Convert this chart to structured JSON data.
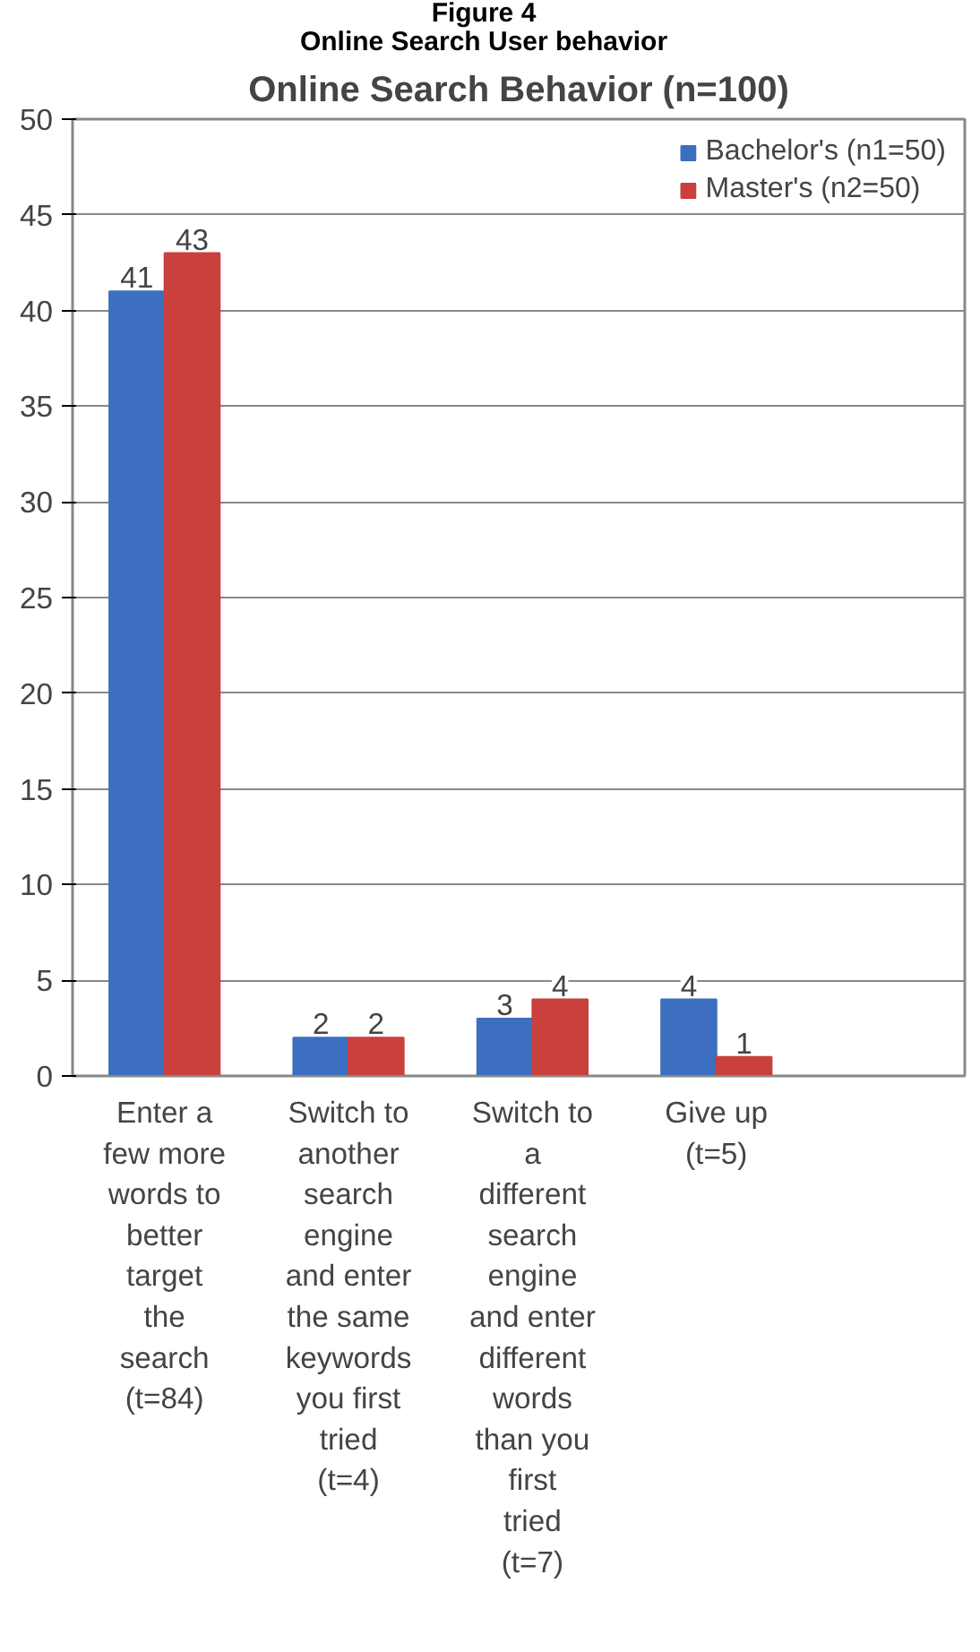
{
  "chart_data": {
    "type": "bar",
    "title": "Online Search Behavior (n=100)",
    "annotations": [
      "Figure 4",
      "Online Search User behavior"
    ],
    "categories": [
      "Enter a few more words to better target the search (t=84)",
      "Switch to another search engine and enter the same keywords you first tried (t=4)",
      "Switch to a different search engine and enter different words than you first tried (t=7)",
      "Give up (t=5)"
    ],
    "series": [
      {
        "name": "Bachelor's (n1=50)",
        "color": "#3c6fbf",
        "values": [
          41,
          2,
          3,
          4
        ]
      },
      {
        "name": "Master's (n2=50)",
        "color": "#c9403c",
        "values": [
          43,
          2,
          4,
          1
        ]
      }
    ],
    "ylim": [
      0,
      50
    ],
    "yticks": [
      0,
      5,
      10,
      15,
      20,
      25,
      30,
      35,
      40,
      45,
      50
    ],
    "grid": "y",
    "legend": "top right",
    "data_labels": true
  }
}
